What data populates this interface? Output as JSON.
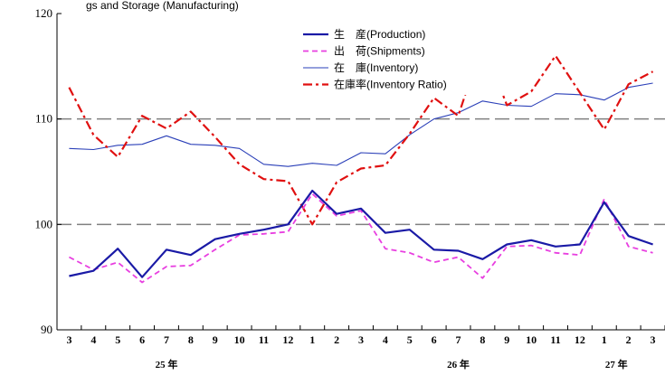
{
  "top_caption": "gs and Storage (Manufacturing)",
  "chart_data": {
    "type": "line",
    "y_ticks": [
      "90",
      "100",
      "110",
      "120"
    ],
    "ylim": [
      90,
      120
    ],
    "dashed_gridlines_at": [
      100,
      110
    ],
    "x_labels": [
      "3",
      "4",
      "5",
      "6",
      "7",
      "8",
      "9",
      "10",
      "11",
      "12",
      "1",
      "2",
      "3",
      "4",
      "5",
      "6",
      "7",
      "8",
      "9",
      "10",
      "11",
      "12",
      "1",
      "2",
      "3"
    ],
    "year_labels": [
      {
        "text": "25 年",
        "at_index": 4
      },
      {
        "text": "26 年",
        "at_index": 16
      },
      {
        "text": "27 年",
        "at_index": 22.5
      }
    ],
    "legend_placement": "top-center",
    "series": [
      {
        "name": "生　産(Production)",
        "color": "#1a1aa6",
        "style": "solid-thick",
        "values": [
          95.1,
          95.6,
          97.7,
          95.0,
          97.6,
          97.1,
          98.6,
          99.1,
          99.5,
          100.0,
          103.2,
          101.0,
          101.5,
          99.2,
          99.5,
          97.6,
          97.5,
          96.7,
          98.1,
          98.5,
          97.9,
          98.1,
          102.1,
          98.9,
          98.1
        ]
      },
      {
        "name": "出　荷(Shipments)",
        "color": "#e83fe0",
        "style": "dashed",
        "values": [
          96.9,
          95.7,
          96.4,
          94.5,
          96.0,
          96.1,
          97.6,
          99.0,
          99.1,
          99.3,
          102.9,
          100.8,
          101.3,
          97.7,
          97.3,
          96.4,
          96.9,
          94.9,
          97.9,
          98.0,
          97.3,
          97.1,
          102.4,
          97.9,
          97.3
        ]
      },
      {
        "name": "在　庫(Inventory)",
        "color": "#2a3fb8",
        "style": "solid-thin",
        "values": [
          107.2,
          107.1,
          107.5,
          107.6,
          108.4,
          107.6,
          107.5,
          107.2,
          105.7,
          105.5,
          105.8,
          105.6,
          106.8,
          106.7,
          108.5,
          110.0,
          110.6,
          111.7,
          111.3,
          111.2,
          112.4,
          112.3,
          111.8,
          113.0,
          113.4
        ]
      },
      {
        "name": "在庫率(Inventory Ratio)",
        "color": "#e01010",
        "style": "dash-dot",
        "values": [
          113.0,
          108.5,
          106.4,
          110.3,
          109.1,
          110.7,
          108.3,
          105.7,
          104.3,
          104.1,
          100.0,
          104.0,
          105.3,
          105.6,
          108.6,
          112.0,
          110.3,
          117.3,
          111.3,
          112.6,
          116.0,
          112.5,
          109.0,
          113.3,
          114.5
        ]
      }
    ]
  }
}
